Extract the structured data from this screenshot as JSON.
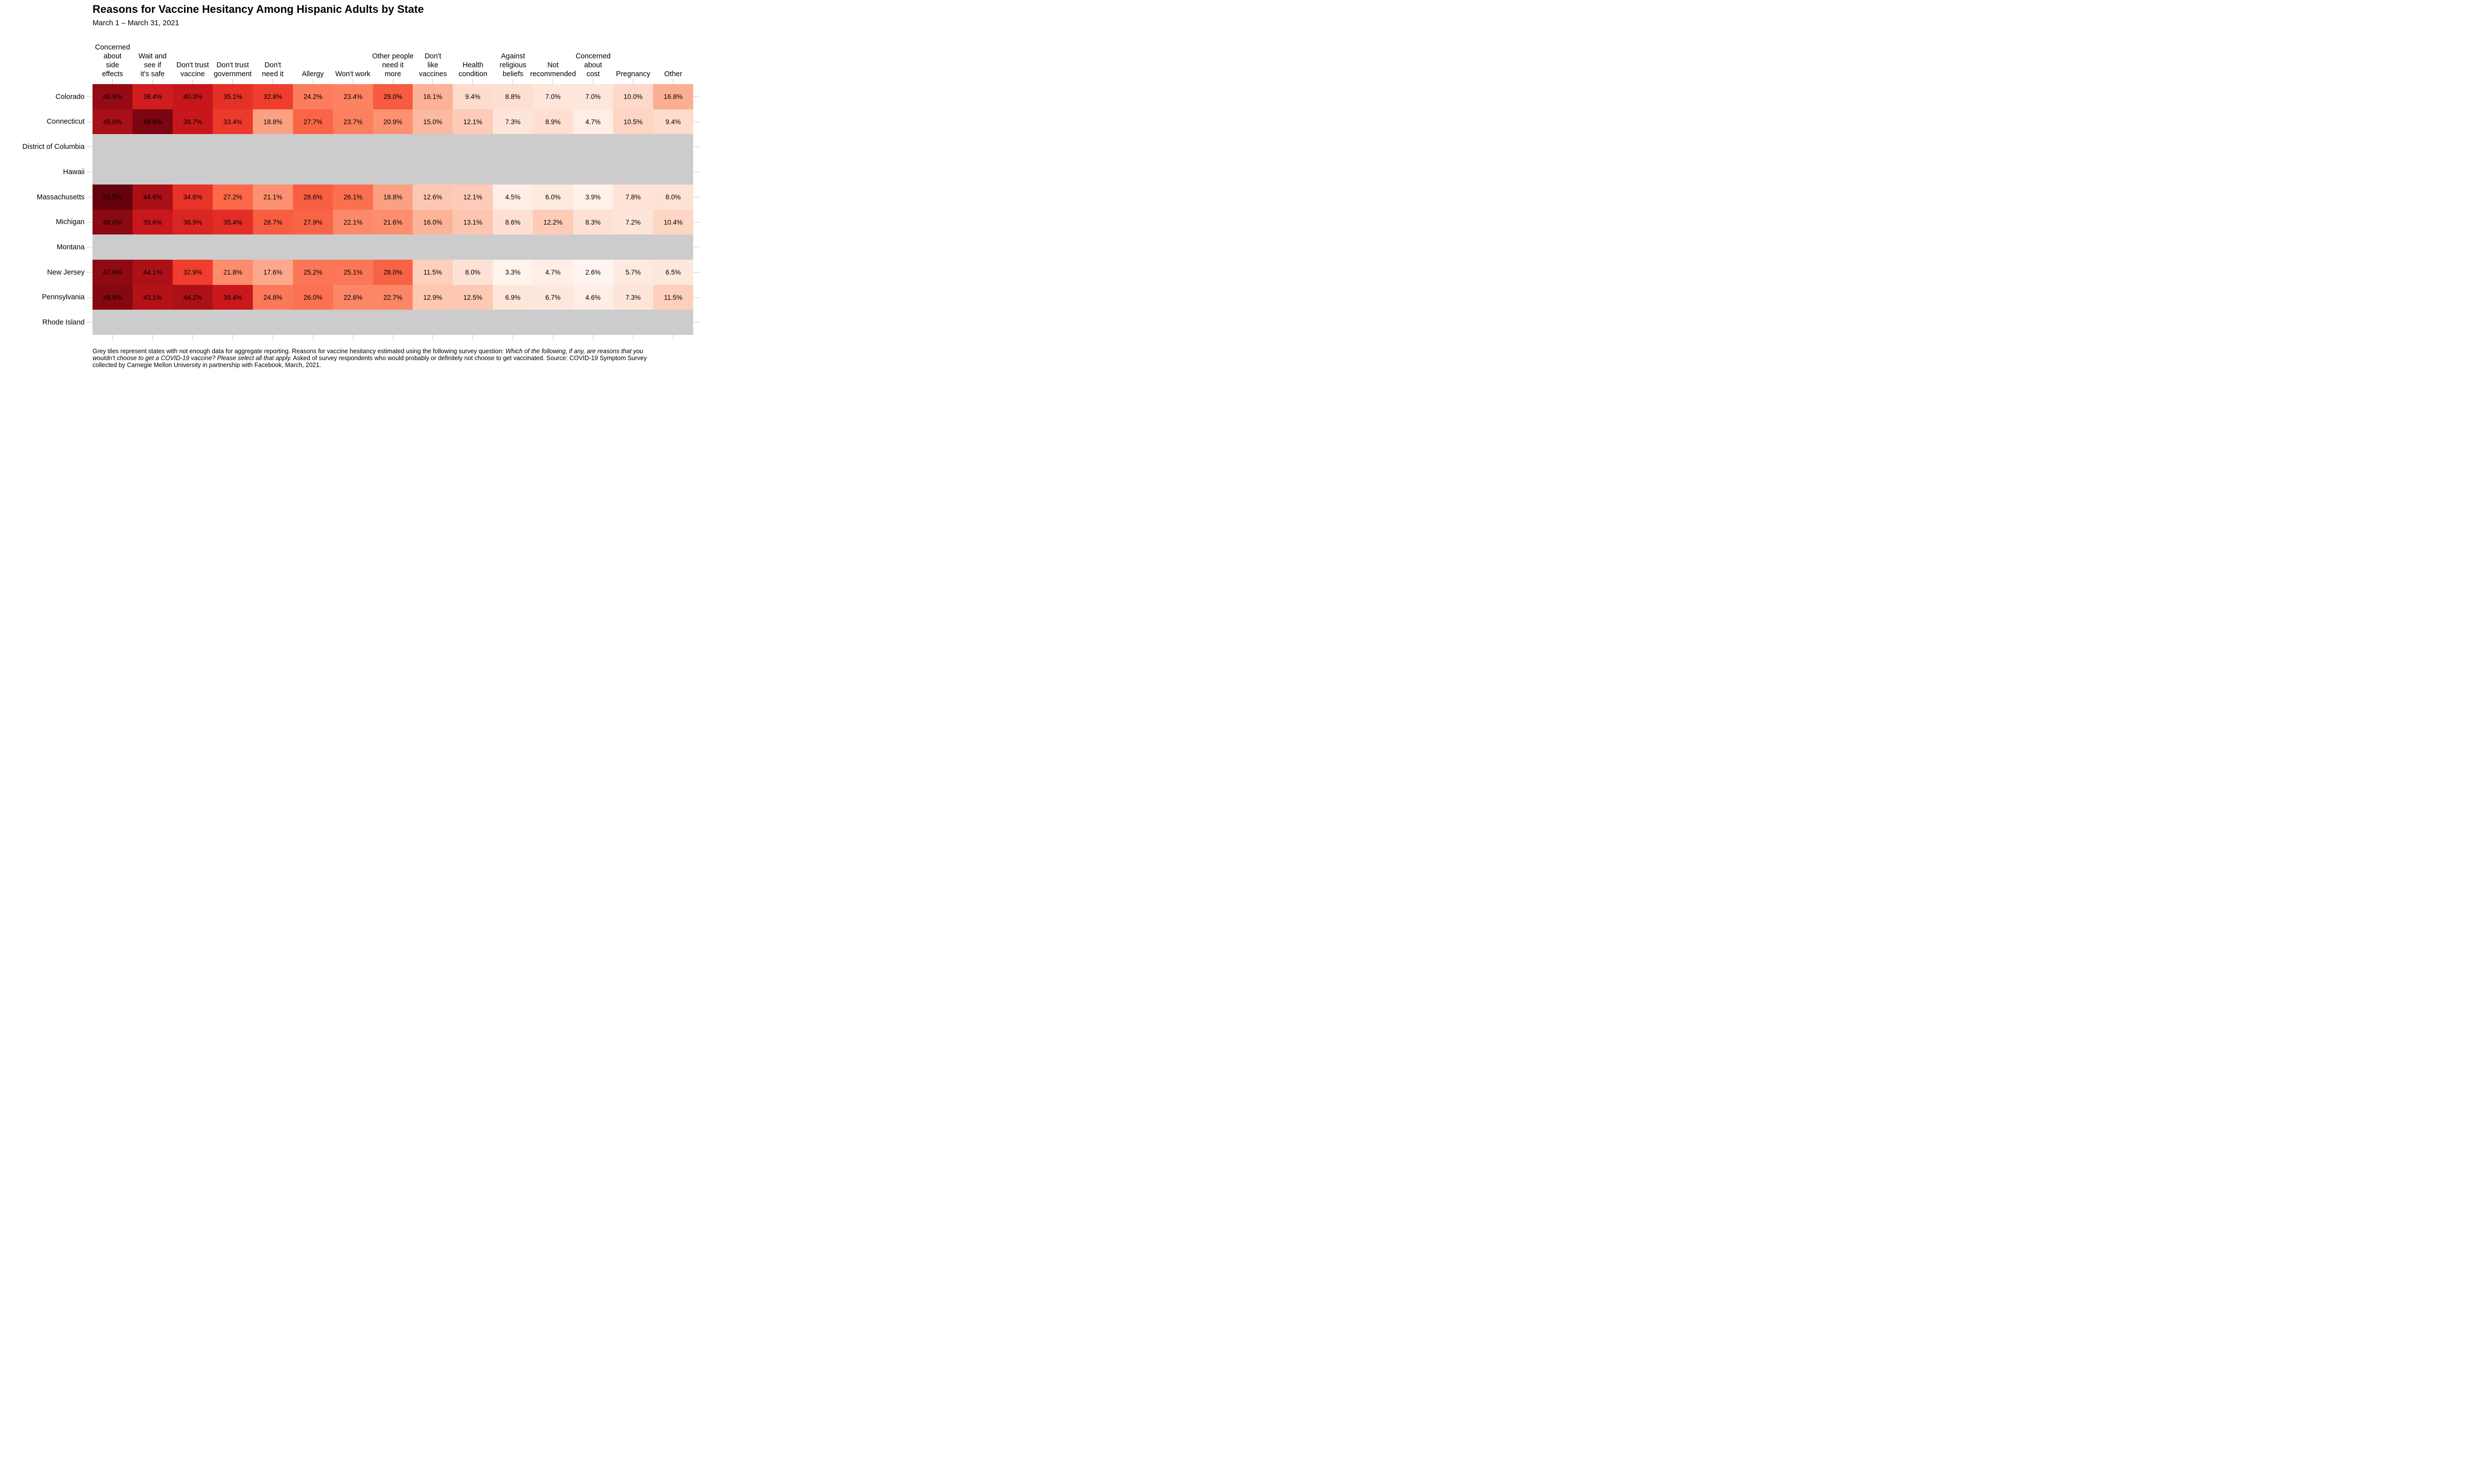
{
  "header": {
    "title": "Reasons for Vaccine Hesitancy Among Hispanic Adults by State",
    "subtitle": "March 1 – March 31, 2021"
  },
  "chart_data": {
    "type": "heatmap",
    "title": "Reasons for Vaccine Hesitancy Among Hispanic Adults by State",
    "subtitle": "March 1 – March 31, 2021",
    "value_unit": "%",
    "columns": [
      {
        "label": "Concerned about side effects",
        "lines": [
          "Concerned",
          "about",
          "side",
          "effects"
        ]
      },
      {
        "label": "Wait and see if it's safe",
        "lines": [
          "Wait and",
          "see if",
          "it's safe"
        ]
      },
      {
        "label": "Don't trust vaccine",
        "lines": [
          "Don't trust",
          "vaccine"
        ]
      },
      {
        "label": "Don't trust government",
        "lines": [
          "Don't trust",
          "government"
        ]
      },
      {
        "label": "Don't need it",
        "lines": [
          "Don't",
          "need it"
        ]
      },
      {
        "label": "Allergy",
        "lines": [
          "Allergy"
        ]
      },
      {
        "label": "Won't work",
        "lines": [
          "Won't work"
        ]
      },
      {
        "label": "Other people need it more",
        "lines": [
          "Other people",
          "need it",
          "more"
        ]
      },
      {
        "label": "Don't like vaccines",
        "lines": [
          "Don't",
          "like",
          "vaccines"
        ]
      },
      {
        "label": "Health condition",
        "lines": [
          "Health",
          "condition"
        ]
      },
      {
        "label": "Against religious beliefs",
        "lines": [
          "Against",
          "religious",
          "beliefs"
        ]
      },
      {
        "label": "Not recommended",
        "lines": [
          "Not",
          "recommended"
        ]
      },
      {
        "label": "Concerned about cost",
        "lines": [
          "Concerned",
          "about",
          "cost"
        ]
      },
      {
        "label": "Pregnancy",
        "lines": [
          "Pregnancy"
        ]
      },
      {
        "label": "Other",
        "lines": [
          "Other"
        ]
      }
    ],
    "rows": [
      {
        "label": "Colorado",
        "values": [
          46.9,
          38.4,
          40.3,
          35.1,
          32.8,
          24.2,
          23.4,
          29.0,
          16.1,
          9.4,
          8.8,
          7.0,
          7.0,
          10.0,
          16.8
        ]
      },
      {
        "label": "Connecticut",
        "values": [
          45.0,
          49.5,
          39.7,
          33.4,
          18.8,
          27.7,
          23.7,
          20.9,
          15.0,
          12.1,
          7.3,
          8.9,
          4.7,
          10.5,
          9.4
        ]
      },
      {
        "label": "District of Columbia",
        "values": null
      },
      {
        "label": "Hawaii",
        "values": null
      },
      {
        "label": "Massachusetts",
        "values": [
          51.5,
          44.6,
          34.6,
          27.2,
          21.1,
          28.6,
          26.1,
          18.8,
          12.6,
          12.1,
          4.5,
          6.0,
          3.9,
          7.8,
          8.0
        ]
      },
      {
        "label": "Michigan",
        "values": [
          48.0,
          39.6,
          36.9,
          35.4,
          28.7,
          27.9,
          22.1,
          21.6,
          16.0,
          13.1,
          8.6,
          12.2,
          8.3,
          7.2,
          10.4
        ]
      },
      {
        "label": "Montana",
        "values": null
      },
      {
        "label": "New Jersey",
        "values": [
          47.6,
          44.1,
          32.9,
          21.8,
          17.6,
          25.2,
          25.1,
          28.0,
          11.5,
          8.0,
          3.3,
          4.7,
          2.6,
          5.7,
          6.5
        ]
      },
      {
        "label": "Pennsylvania",
        "values": [
          48.5,
          43.1,
          44.2,
          39.4,
          24.8,
          26.0,
          22.6,
          22.7,
          12.9,
          12.5,
          6.9,
          6.7,
          4.6,
          7.3,
          11.5
        ]
      },
      {
        "label": "Rhode Island",
        "values": null
      }
    ],
    "color_scale": {
      "type": "sequential",
      "palette": [
        "#fff5f0",
        "#fee0d2",
        "#fcbba1",
        "#fc9272",
        "#fb6a4a",
        "#ef3b2c",
        "#cb181d",
        "#a50f15",
        "#67000d"
      ],
      "domain": [
        2.6,
        51.5
      ]
    },
    "na_color": "#cccccc",
    "tick_color": "#c9c9c9",
    "text_color": "#000000",
    "grid": false,
    "legend": "none"
  },
  "footnote": {
    "segments": [
      {
        "text": "Grey tiles represent states with not enough data for aggregate reporting. Reasons for vaccine hesitancy estimated using the following survey question: ",
        "italic": false
      },
      {
        "text": "Which of the following, if any, are reasons that you wouldn't choose to get a COVID-19 vaccine? Please select all that apply.",
        "italic": true
      },
      {
        "text": " Asked of survey respondents who would probably or definitely not choose to get vaccinated. Source: COVID-19 Symptom Survey collected by Carnegie Mellon University in partnership with Facebook, March, 2021.",
        "italic": false
      }
    ]
  }
}
